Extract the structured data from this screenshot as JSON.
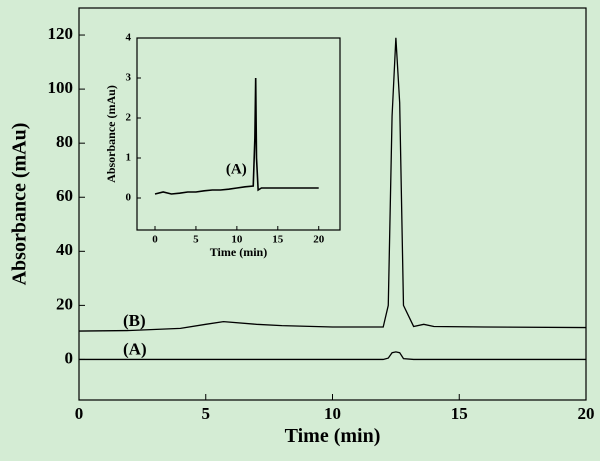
{
  "chart_data": [
    {
      "type": "line",
      "x_label": "Time (min)",
      "y_label": "Absorbance (mAu)",
      "xlim": [
        0,
        20
      ],
      "ylim": [
        -15,
        130
      ],
      "xticks": [
        0,
        5,
        10,
        15,
        20
      ],
      "yticks": [
        0,
        20,
        40,
        60,
        80,
        100,
        120
      ],
      "x": [
        0,
        2,
        4,
        5,
        5.7,
        7,
        8,
        10,
        12,
        12.2,
        12.35,
        12.5,
        12.65,
        12.8,
        13.2,
        13.6,
        14,
        16,
        20
      ],
      "series": [
        {
          "name": "(B)",
          "color": "#000000",
          "values": [
            10.5,
            10.7,
            11.5,
            13,
            14,
            13,
            12.5,
            12,
            12,
            20,
            90,
            119,
            95,
            20,
            12.2,
            13,
            12.2,
            12,
            11.8
          ]
        },
        {
          "name": "(A)",
          "color": "#000000",
          "values": [
            0,
            0,
            0,
            0,
            0,
            0,
            0,
            0,
            0,
            0.5,
            2.5,
            2.8,
            2.5,
            0.3,
            0,
            0,
            0,
            0,
            0
          ]
        }
      ]
    },
    {
      "type": "line",
      "x_label": "Time (min)",
      "y_label": "Absorbance (mAu)",
      "xlim": [
        -2.2,
        22.6
      ],
      "ylim": [
        -0.8,
        4.0
      ],
      "xticks": [
        0,
        5,
        10,
        15,
        20
      ],
      "yticks": [
        0,
        1,
        2,
        3,
        4
      ],
      "x": [
        0,
        1,
        2,
        3,
        4,
        5,
        6,
        7,
        8,
        9,
        10,
        11,
        12,
        12.2,
        12.3,
        12.4,
        12.6,
        13,
        14,
        16,
        18,
        20
      ],
      "series": [
        {
          "name": "(A)",
          "color": "#000000",
          "values": [
            0.1,
            0.15,
            0.1,
            0.12,
            0.15,
            0.15,
            0.18,
            0.2,
            0.2,
            0.22,
            0.25,
            0.28,
            0.3,
            1.5,
            3,
            1.0,
            0.2,
            0.25,
            0.25,
            0.25,
            0.25,
            0.25
          ]
        }
      ]
    }
  ]
}
